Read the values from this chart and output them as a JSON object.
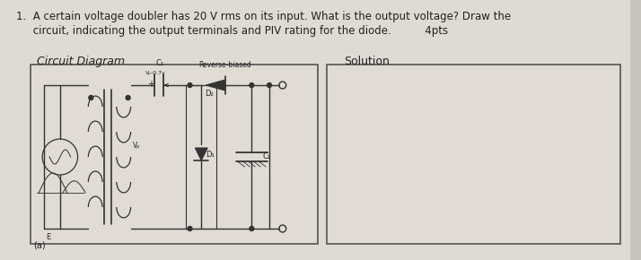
{
  "bg_color": "#c8c4be",
  "paper_color": "#e0dbd4",
  "fig_bg": "#c8c4be",
  "title_line1": "1.  A certain voltage doubler has 20 V rms on its input. What is the output voltage? Draw the",
  "title_line2": "     circuit, indicating the output terminals and PIV rating for the diode.          4pts",
  "circuit_label": "Circuit Diagram",
  "solution_label": "Solution",
  "figsize": [
    7.14,
    2.9
  ],
  "dpi": 100,
  "line_color": "#333333",
  "text_color": "#222222"
}
